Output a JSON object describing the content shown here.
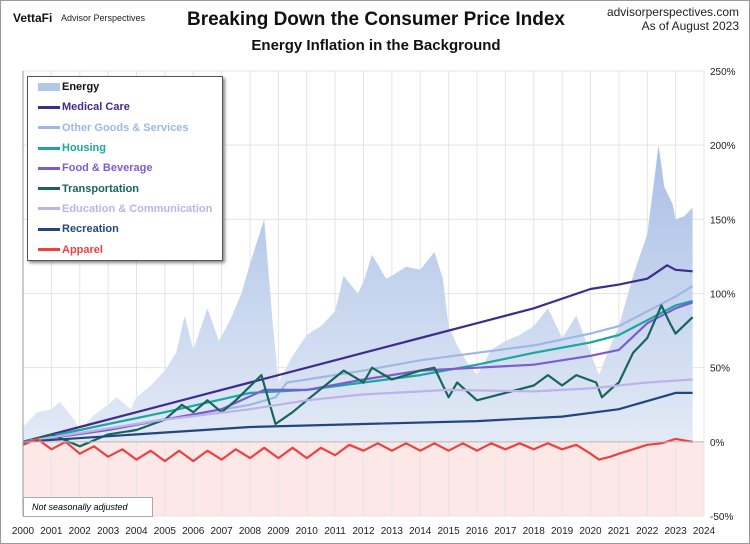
{
  "header": {
    "logo": "VettaFi",
    "logo_sub": "Advisor Perspectives",
    "title": "Breaking Down the Consumer Price Index",
    "subtitle": "Energy Inflation in the Background",
    "site": "advisorperspectives.com",
    "as_of": "As of August 2023"
  },
  "note": "Not seasonally adjusted",
  "chart_data": {
    "type": "line",
    "title": "Breaking Down the Consumer Price Index",
    "subtitle": "Energy Inflation in the Background",
    "xlim": [
      2000,
      2024
    ],
    "ylim": [
      -50,
      250
    ],
    "x_ticks": [
      "2000",
      "2001",
      "2002",
      "2003",
      "2004",
      "2005",
      "2006",
      "2007",
      "2008",
      "2009",
      "2010",
      "2011",
      "2012",
      "2013",
      "2014",
      "2015",
      "2016",
      "2017",
      "2018",
      "2019",
      "2020",
      "2021",
      "2022",
      "2023",
      "2024"
    ],
    "y_ticks": [
      "-50%",
      "0%",
      "50%",
      "100%",
      "150%",
      "200%",
      "250%"
    ],
    "y_tick_values": [
      -50,
      0,
      50,
      100,
      150,
      200,
      250
    ],
    "grid": true,
    "legend": "top-left",
    "series": [
      {
        "name": "Energy",
        "type": "area",
        "color": "#b4c7e7",
        "x": [
          2000,
          2000.5,
          2001,
          2001.3,
          2001.8,
          2002,
          2002.5,
          2003,
          2003.3,
          2003.8,
          2004,
          2004.5,
          2005,
          2005.4,
          2005.7,
          2006,
          2006.5,
          2006.9,
          2007.3,
          2007.7,
          2008,
          2008.5,
          2008.8,
          2009,
          2009.5,
          2010,
          2010.5,
          2011,
          2011.3,
          2011.8,
          2012,
          2012.3,
          2012.8,
          2013,
          2013.5,
          2014,
          2014.5,
          2014.8,
          2015,
          2015.3,
          2015.6,
          2016,
          2016.5,
          2017,
          2017.5,
          2018,
          2018.5,
          2019,
          2019.5,
          2020,
          2020.3,
          2020.6,
          2021,
          2021.5,
          2022,
          2022.4,
          2022.6,
          2022.9,
          2023,
          2023.3,
          2023.6
        ],
        "values": [
          10,
          20,
          22,
          27,
          15,
          8,
          18,
          25,
          30,
          22,
          30,
          38,
          48,
          60,
          85,
          62,
          90,
          68,
          82,
          100,
          120,
          150,
          80,
          40,
          58,
          72,
          78,
          88,
          112,
          100,
          108,
          126,
          110,
          112,
          118,
          116,
          128,
          110,
          78,
          65,
          55,
          45,
          62,
          68,
          72,
          78,
          90,
          70,
          85,
          60,
          45,
          60,
          78,
          112,
          140,
          200,
          172,
          160,
          150,
          152,
          158
        ]
      },
      {
        "name": "Medical Care",
        "color": "#3f2c8c",
        "x": [
          2000,
          2002,
          2004,
          2006,
          2008,
          2010,
          2012,
          2014,
          2016,
          2018,
          2020,
          2021,
          2022,
          2022.7,
          2023,
          2023.6
        ],
        "values": [
          0,
          10,
          20,
          30,
          40,
          50,
          60,
          70,
          80,
          90,
          103,
          106,
          110,
          119,
          116,
          115
        ]
      },
      {
        "name": "Other Goods & Services",
        "color": "#9db8e3",
        "x": [
          2000,
          2004,
          2008,
          2008.9,
          2009.3,
          2010,
          2012,
          2014,
          2016,
          2018,
          2020,
          2021,
          2022,
          2023,
          2023.6
        ],
        "values": [
          0,
          12,
          25,
          30,
          40,
          42,
          48,
          55,
          60,
          65,
          73,
          78,
          88,
          98,
          105
        ]
      },
      {
        "name": "Housing",
        "color": "#1aa7a1",
        "x": [
          2000,
          2002,
          2005,
          2008,
          2010,
          2012,
          2014,
          2016,
          2018,
          2020,
          2021,
          2022,
          2023,
          2023.6
        ],
        "values": [
          0,
          8,
          20,
          33,
          35,
          40,
          45,
          52,
          60,
          67,
          72,
          82,
          92,
          95
        ]
      },
      {
        "name": "Food & Beverage",
        "color": "#7d5bd0",
        "x": [
          2000,
          2003,
          2005,
          2007,
          2008.5,
          2010,
          2012,
          2014,
          2016,
          2018,
          2020,
          2021,
          2022,
          2023,
          2023.6
        ],
        "values": [
          0,
          8,
          15,
          22,
          35,
          35,
          42,
          48,
          50,
          52,
          58,
          62,
          80,
          90,
          94
        ]
      },
      {
        "name": "Transportation",
        "color": "#16665c",
        "x": [
          2000,
          2001,
          2002,
          2003,
          2004,
          2005,
          2005.6,
          2006,
          2006.5,
          2007,
          2007.5,
          2008.4,
          2008.9,
          2009.5,
          2010,
          2011.3,
          2012,
          2012.3,
          2013,
          2014,
          2014.5,
          2015,
          2015.3,
          2016,
          2017,
          2018,
          2018.5,
          2019,
          2019.5,
          2020.2,
          2020.4,
          2020.8,
          2021,
          2021.5,
          2022,
          2022.5,
          2022.8,
          2023,
          2023.6
        ],
        "values": [
          0,
          5,
          -3,
          5,
          8,
          15,
          25,
          20,
          28,
          20,
          28,
          45,
          12,
          20,
          28,
          48,
          40,
          50,
          42,
          48,
          50,
          30,
          40,
          28,
          33,
          38,
          45,
          38,
          45,
          40,
          30,
          37,
          40,
          60,
          70,
          92,
          80,
          73,
          84
        ]
      },
      {
        "name": "Education & Communication",
        "color": "#bdb2ea",
        "x": [
          2000,
          2005,
          2008,
          2010,
          2012,
          2015,
          2018,
          2020,
          2022,
          2023.6
        ],
        "values": [
          0,
          15,
          22,
          28,
          32,
          35,
          34,
          36,
          40,
          42
        ]
      },
      {
        "name": "Recreation",
        "color": "#24467e",
        "x": [
          2000,
          2004,
          2008,
          2012,
          2016,
          2019,
          2021,
          2023,
          2023.6
        ],
        "values": [
          0,
          5,
          10,
          12,
          14,
          17,
          22,
          33,
          33
        ]
      },
      {
        "name": "Apparel",
        "color": "#ef4040",
        "x": [
          2000,
          2000.5,
          2001,
          2001.5,
          2002,
          2002.5,
          2003,
          2003.5,
          2004,
          2004.5,
          2005,
          2005.5,
          2006,
          2006.5,
          2007,
          2007.5,
          2008,
          2008.5,
          2009,
          2009.5,
          2010,
          2010.5,
          2011,
          2011.5,
          2012,
          2012.5,
          2013,
          2013.5,
          2014,
          2014.5,
          2015,
          2015.5,
          2016,
          2016.5,
          2017,
          2017.5,
          2018,
          2018.5,
          2019,
          2019.5,
          2020,
          2020.3,
          2020.7,
          2021,
          2021.5,
          2022,
          2022.5,
          2023,
          2023.6
        ],
        "values": [
          -2,
          2,
          -5,
          0,
          -8,
          -3,
          -10,
          -5,
          -12,
          -6,
          -13,
          -6,
          -13,
          -6,
          -12,
          -5,
          -11,
          -4,
          -11,
          -4,
          -11,
          -4,
          -9,
          -2,
          -6,
          -1,
          -6,
          -1,
          -6,
          -1,
          -6,
          -1,
          -6,
          -1,
          -5,
          -1,
          -5,
          -1,
          -5,
          -2,
          -8,
          -12,
          -10,
          -8,
          -5,
          -2,
          -1,
          2,
          0
        ]
      }
    ]
  }
}
